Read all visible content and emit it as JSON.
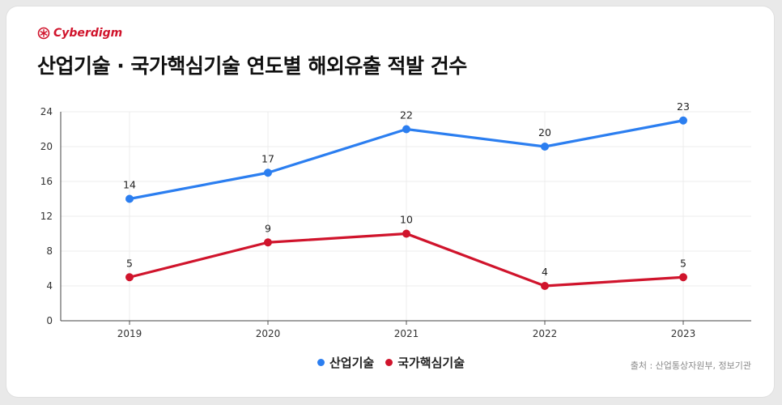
{
  "brand": {
    "name": "Cyberdigm",
    "color": "#d0142c"
  },
  "title": "산업기술 · 국가핵심기술 연도별 해외유출 적발 건수",
  "source": "출처 : 산업통상자원부, 정보기관",
  "chart_data": {
    "type": "line",
    "title": "산업기술 · 국가핵심기술 연도별 해외유출 적발 건수",
    "categories": [
      "2019",
      "2020",
      "2021",
      "2022",
      "2023"
    ],
    "yticks": [
      "0",
      "4",
      "8",
      "12",
      "16",
      "20",
      "24"
    ],
    "ylim": [
      0,
      24
    ],
    "grid": true,
    "legend_position": "bottom",
    "series": [
      {
        "name": "산업기술",
        "color": "#2b7ef0",
        "values": [
          14,
          17,
          22,
          20,
          23
        ]
      },
      {
        "name": "국가핵심기술",
        "color": "#d0142c",
        "values": [
          5,
          9,
          10,
          4,
          5
        ]
      }
    ]
  }
}
